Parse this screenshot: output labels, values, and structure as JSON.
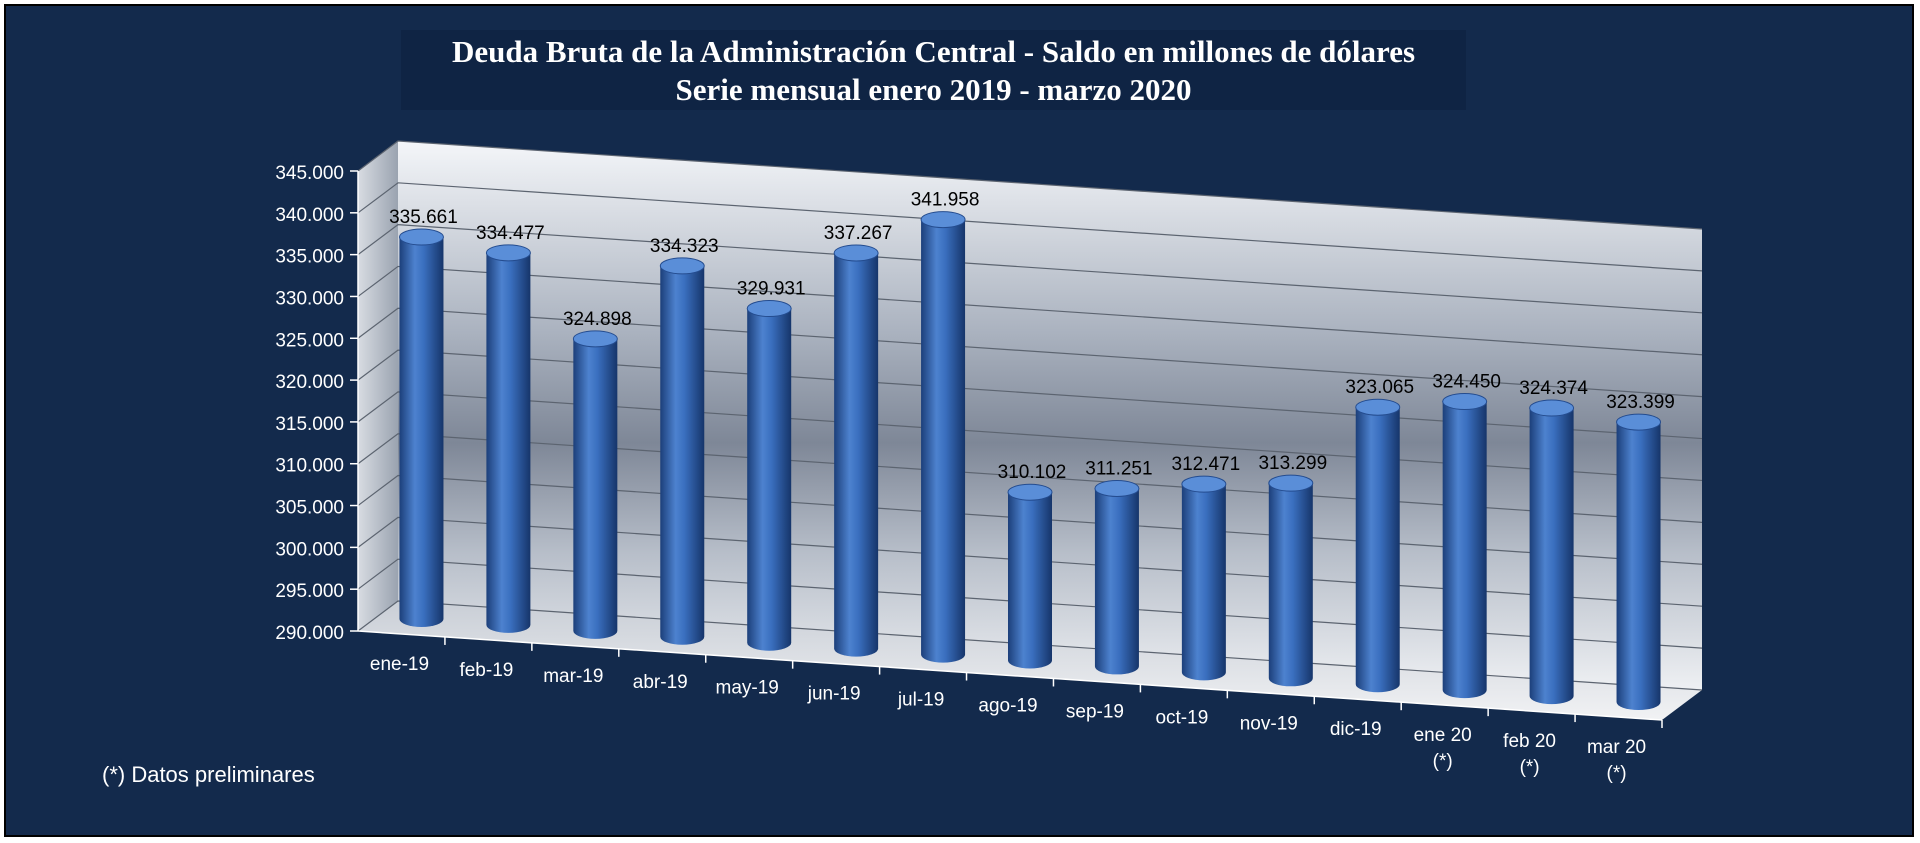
{
  "chart_data": {
    "type": "bar",
    "title": "Deuda Bruta de la Administración Central - Saldo en millones de dólares",
    "subtitle": "Serie mensual enero 2019 - marzo 2020",
    "categories": [
      "ene-19",
      "feb-19",
      "mar-19",
      "abr-19",
      "may-19",
      "jun-19",
      "jul-19",
      "ago-19",
      "sep-19",
      "oct-19",
      "nov-19",
      "dic-19",
      "ene 20\n(*)",
      "feb 20\n(*)",
      "mar 20\n(*)"
    ],
    "values": [
      335661,
      334477,
      324898,
      334323,
      329931,
      337267,
      341958,
      310102,
      311251,
      312471,
      313299,
      323065,
      324450,
      324374,
      323399
    ],
    "data_labels": [
      "335.661",
      "334.477",
      "324.898",
      "334.323",
      "329.931",
      "337.267",
      "341.958",
      "310.102",
      "311.251",
      "312.471",
      "313.299",
      "323.065",
      "324.450",
      "324.374",
      "323.399"
    ],
    "y_ticks": [
      "290.000",
      "295.000",
      "300.000",
      "305.000",
      "310.000",
      "315.000",
      "320.000",
      "325.000",
      "330.000",
      "335.000",
      "340.000",
      "345.000"
    ],
    "ylim": [
      290000,
      345000
    ],
    "bar_color": "#3a6fbf",
    "grid": true,
    "style": "3d-cylinder"
  },
  "footnote": "(*) Datos preliminares"
}
